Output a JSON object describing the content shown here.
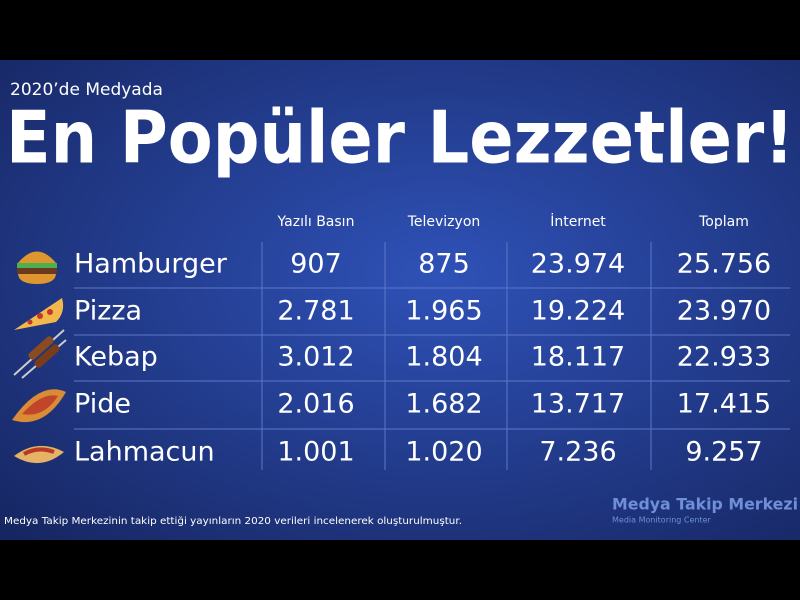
{
  "header": {
    "subtitle": "2020’de Medyada",
    "title": "En Popüler Lezzetler!"
  },
  "table": {
    "columns": [
      "Yazılı Basın",
      "Televizyon",
      "İnternet",
      "Toplam"
    ],
    "rows": [
      [
        "Hamburger",
        "907",
        "875",
        "23.974",
        "25.756"
      ],
      [
        "Pizza",
        "2.781",
        "1.965",
        "19.224",
        "23.970"
      ],
      [
        "Kebap",
        "3.012",
        "1.804",
        "18.117",
        "22.933"
      ],
      [
        "Pide",
        "2.016",
        "1.682",
        "13.717",
        "17.415"
      ],
      [
        "Lahmacun",
        "1.001",
        "1.020",
        "7.236",
        "9.257"
      ]
    ]
  },
  "footer": {
    "note": "Medya Takip Merkezinin takip ettiği yayınların 2020 verileri incelenerek oluşturulmuştur."
  },
  "logo": {
    "name": "Medya Takip Merkezi",
    "tagline": "Media Monitoring Center"
  }
}
